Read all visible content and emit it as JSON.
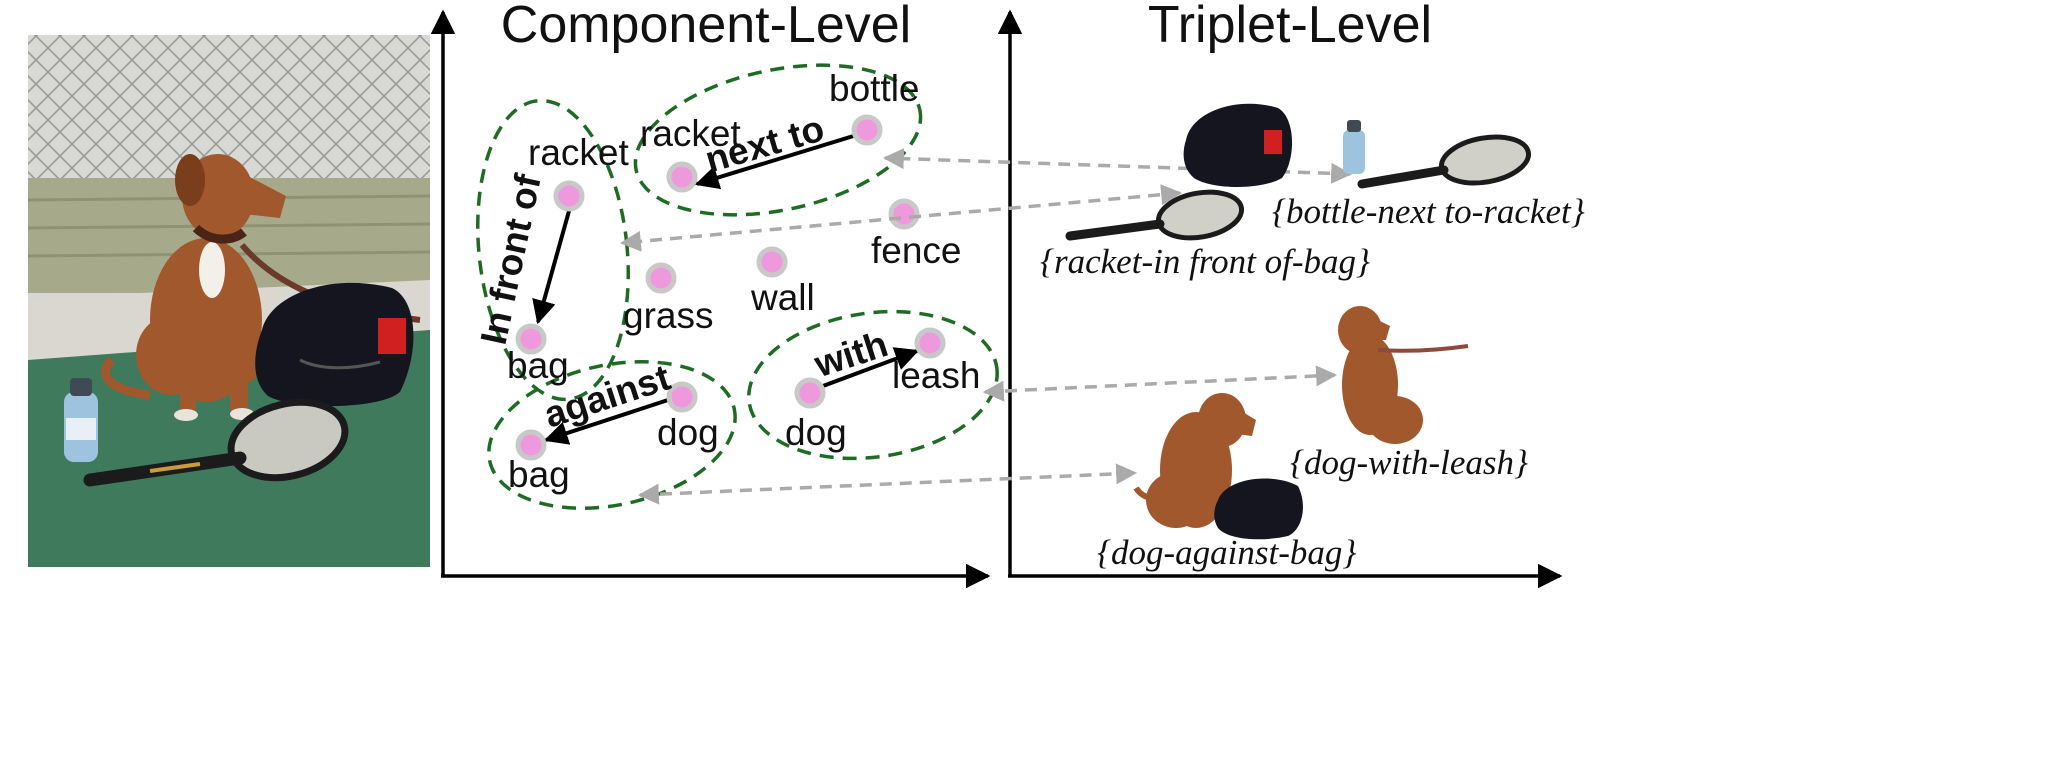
{
  "left_panel": {
    "title": "Component-Level",
    "nodes": {
      "racket_a": "racket",
      "racket_b": "racket",
      "bottle": "bottle",
      "fence": "fence",
      "grass": "grass",
      "wall": "wall",
      "bag_a": "bag",
      "bag_b": "bag",
      "dog_a": "dog",
      "dog_b": "dog",
      "leash": "leash"
    },
    "relations": {
      "next_to": "next to",
      "in_front_of": "In front of",
      "against": "against",
      "with": "with"
    }
  },
  "right_panel": {
    "title": "Triplet-Level",
    "triplets": {
      "bottle_next_to_racket": "{bottle-next to-racket}",
      "racket_in_front_of_bag": "{racket-in front of-bag}",
      "dog_with_leash": "{dog-with-leash}",
      "dog_against_bag": "{dog-against-bag}"
    }
  },
  "colors": {
    "node_fill": "#ee99dd",
    "node_ring": "#c8c8c8",
    "group_outline": "#1e6b24",
    "link_arrow": "#aaaaaa",
    "court": "#3f7a5c",
    "dog": "#a0582c",
    "bag": "#151520"
  }
}
